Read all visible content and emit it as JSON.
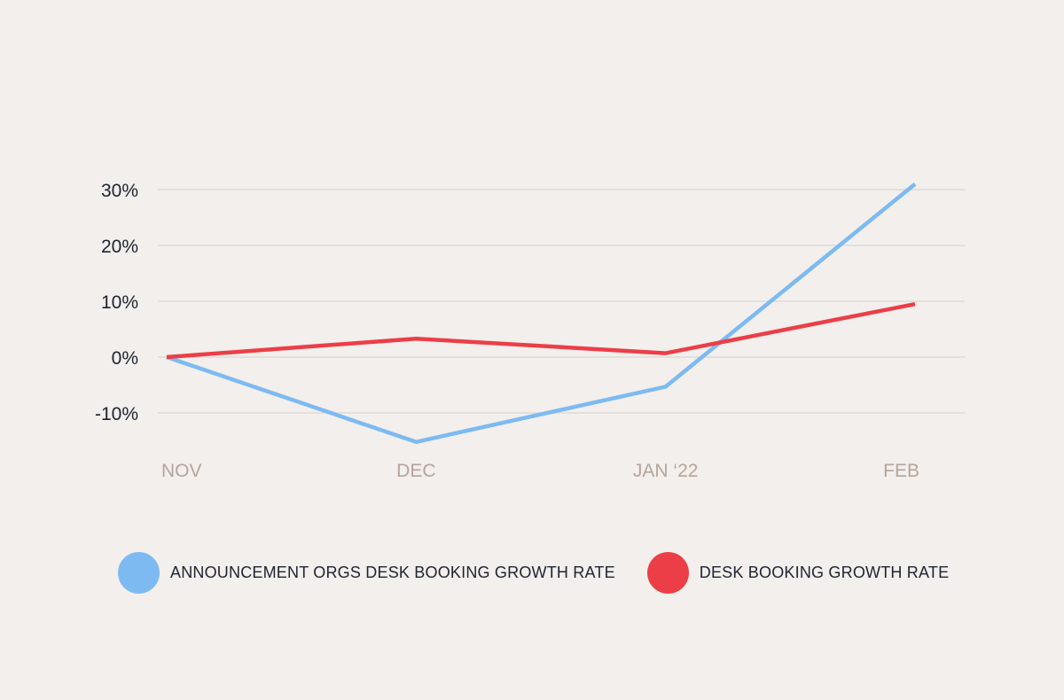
{
  "chart_data": {
    "type": "line",
    "categories": [
      "NOV",
      "DEC",
      "JAN ‘22",
      "FEB"
    ],
    "y_ticks": [
      30,
      20,
      10,
      0,
      -10
    ],
    "y_tick_labels": [
      "30%",
      "20%",
      "10%",
      "0%",
      "-10%"
    ],
    "ylim": [
      -15,
      31
    ],
    "grid": true,
    "legend_position": "bottom-left",
    "series": [
      {
        "name": "ANNOUNCEMENT ORGS DESK BOOKING GROWTH RATE",
        "color": "#7dbaf2",
        "values": [
          0,
          -15.2,
          -5.3,
          31
        ]
      },
      {
        "name": "DESK BOOKING GROWTH RATE",
        "color": "#ec3e47",
        "values": [
          0,
          3.3,
          0.7,
          9.5
        ]
      }
    ]
  }
}
